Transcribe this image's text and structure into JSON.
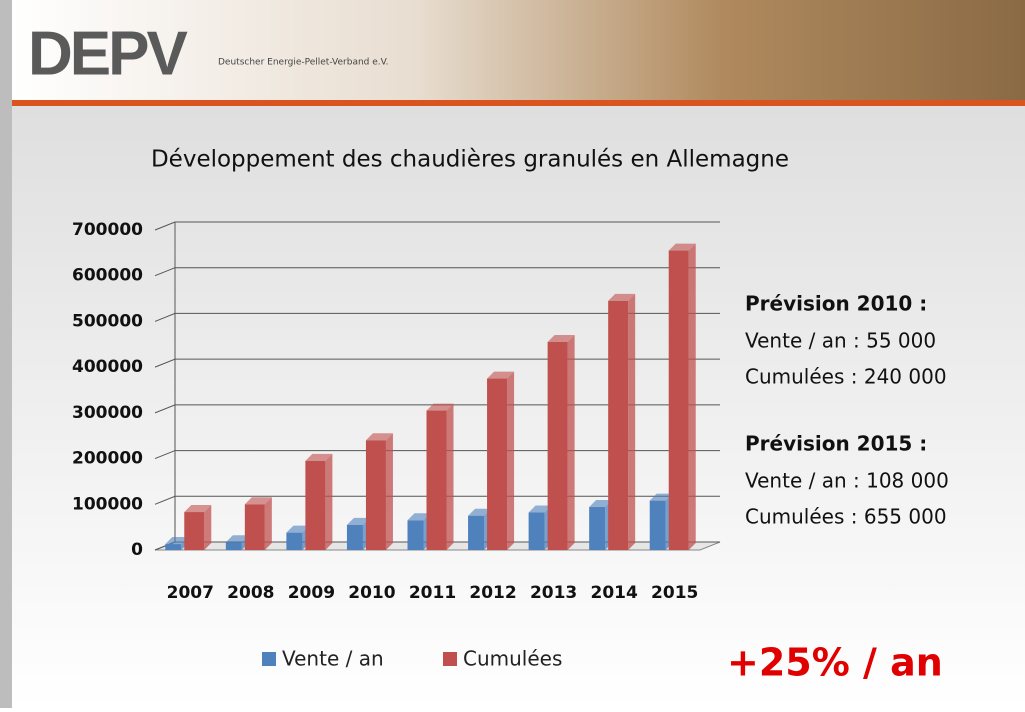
{
  "header": {
    "logo": "DEPV",
    "org": "Deutscher Energie-Pellet-Verband e.V."
  },
  "chart_data": {
    "type": "bar",
    "title": "Développement des chaudières granulés en Allemagne",
    "categories": [
      "2007",
      "2008",
      "2009",
      "2010",
      "2011",
      "2012",
      "2013",
      "2014",
      "2015"
    ],
    "series": [
      {
        "name": "Vente / an",
        "color": "#4f81bd",
        "values": [
          13000,
          17000,
          38000,
          55000,
          65000,
          75000,
          82000,
          94000,
          108000
        ]
      },
      {
        "name": "Cumulées",
        "color": "#c0504d",
        "values": [
          83000,
          100000,
          195000,
          240000,
          305000,
          375000,
          455000,
          545000,
          655000
        ]
      }
    ],
    "ylim": [
      0,
      700000
    ],
    "yticks": [
      0,
      100000,
      200000,
      300000,
      400000,
      500000,
      600000,
      700000
    ],
    "grid": true,
    "annotations": [
      {
        "text": "Prévision 2010 :",
        "bold": true
      },
      {
        "text": "Vente / an : 55 000",
        "bold": false
      },
      {
        "text": "Cumulées : 240 000",
        "bold": false
      },
      {
        "text": "Prévision 2015 :",
        "bold": true
      },
      {
        "text": "Vente / an :  108 000",
        "bold": false
      },
      {
        "text": "Cumulées :  655 000",
        "bold": false
      }
    ],
    "highlight": "+25% / an"
  }
}
